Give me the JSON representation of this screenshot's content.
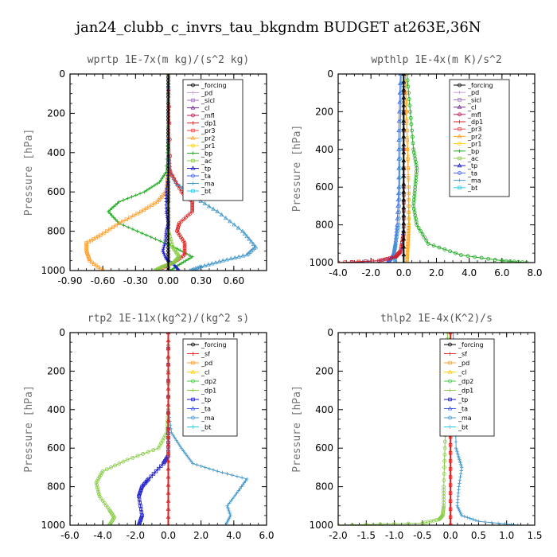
{
  "figure": {
    "title": "jan24_clubb_c_invrs_tau_bkgndm  BUDGET at263E,36N"
  },
  "colors": {
    "forcing": "#000000",
    "pd": "#c8a0d8",
    "sicl": "#a070c0",
    "cl": "#7a2a9a",
    "mfl": "#c01850",
    "dp1": "#dd2222",
    "pr3": "#ee4444",
    "pr2": "#ffa030",
    "pr1": "#ffd000",
    "bp": "#22aa22",
    "ac": "#88cc44",
    "tp": "#1a1acc",
    "ta": "#4466ee",
    "ma": "#4499cc",
    "bt": "#22ccee",
    "sf": "#ee2222",
    "dp2": "#44cc44"
  },
  "chart_data": [
    {
      "type": "line",
      "title": "wprtp  1E-7x(m kg)/(s^2 kg)",
      "ylabel": "Pressure [hPa]",
      "xlim": [
        -0.9,
        0.9
      ],
      "ylim": [
        1000,
        0
      ],
      "y_inverted": true,
      "xticks": [
        "-0.90",
        "-0.60",
        "-0.30",
        "0.00",
        "0.30",
        "0.60"
      ],
      "xtick_values": [
        -0.9,
        -0.6,
        -0.3,
        0,
        0.3,
        0.6
      ],
      "yticks": [
        "0",
        "200",
        "400",
        "600",
        "800",
        "1000"
      ],
      "legend": [
        "_forcing",
        "_pd",
        "_sicl",
        "_cl",
        "_mfl",
        "_dp1",
        "_pr3",
        "_pr2",
        "_pr1",
        "_bp",
        "_ac",
        "_tp",
        "_ta",
        "_ma",
        "_bt"
      ],
      "legend_colors": [
        "forcing",
        "pd",
        "sicl",
        "cl",
        "mfl",
        "dp1",
        "pr3",
        "pr2",
        "pr1",
        "bp",
        "ac",
        "tp",
        "ta",
        "ma",
        "bt"
      ],
      "series": [
        {
          "name": "_forcing",
          "color": "forcing",
          "x": [
            0,
            0,
            0,
            0,
            0,
            0,
            0,
            0,
            0,
            0,
            0
          ],
          "y": [
            0,
            100,
            200,
            300,
            400,
            500,
            600,
            700,
            800,
            900,
            1000
          ]
        },
        {
          "name": "_bp",
          "color": "bp",
          "x": [
            0,
            0,
            -0.02,
            -0.08,
            -0.22,
            -0.45,
            -0.55,
            -0.45,
            -0.2,
            0.05,
            0.22,
            0.1,
            0.02
          ],
          "y": [
            0,
            300,
            500,
            550,
            600,
            650,
            700,
            760,
            820,
            880,
            930,
            970,
            1000
          ]
        },
        {
          "name": "_pr2",
          "color": "pr2",
          "x": [
            0,
            0,
            -0.02,
            -0.1,
            -0.25,
            -0.45,
            -0.62,
            -0.75,
            -0.75,
            -0.72,
            -0.6
          ],
          "y": [
            0,
            500,
            600,
            650,
            700,
            760,
            820,
            860,
            900,
            950,
            1000
          ]
        },
        {
          "name": "_ma",
          "color": "ma",
          "x": [
            0,
            0,
            0.02,
            0.08,
            0.22,
            0.45,
            0.68,
            0.8,
            0.72,
            0.5,
            0.3,
            0.2
          ],
          "y": [
            0,
            400,
            500,
            560,
            620,
            700,
            800,
            880,
            920,
            950,
            980,
            1000
          ]
        },
        {
          "name": "_dp1",
          "color": "dp1",
          "x": [
            0,
            0.02,
            0.12,
            0.22,
            0.22,
            0.1,
            0.08,
            0.15,
            0.15,
            0.05,
            -0.1
          ],
          "y": [
            0,
            500,
            600,
            650,
            700,
            760,
            800,
            860,
            920,
            960,
            1000
          ]
        },
        {
          "name": "_tp",
          "color": "tp",
          "x": [
            0,
            0,
            -0.02,
            -0.02,
            0,
            -0.02,
            -0.03,
            -0.05,
            -0.02,
            0.05,
            0.1
          ],
          "y": [
            0,
            500,
            600,
            700,
            760,
            800,
            860,
            900,
            940,
            970,
            1000
          ]
        },
        {
          "name": "_ac",
          "color": "ac",
          "x": [
            0,
            0,
            0.04,
            0.1,
            0.05,
            -0.05,
            -0.12
          ],
          "y": [
            0,
            800,
            880,
            930,
            960,
            980,
            1000
          ]
        }
      ]
    },
    {
      "type": "line",
      "title": "wpthlp  1E-4x(m K)/s^2",
      "ylabel": "Pressure [hPa]",
      "xlim": [
        -4.0,
        8.0
      ],
      "ylim": [
        1000,
        0
      ],
      "y_inverted": true,
      "xticks": [
        "-4.0",
        "-2.0",
        "0.0",
        "2.0",
        "4.0",
        "6.0",
        "8.0"
      ],
      "xtick_values": [
        -4,
        -2,
        0,
        2,
        4,
        6,
        8
      ],
      "yticks": [
        "0",
        "200",
        "400",
        "600",
        "800",
        "1000"
      ],
      "legend": [
        "_forcing",
        "_pd",
        "_sicl",
        "_cl",
        "_mfl",
        "_dp1",
        "_pr3",
        "_pr2",
        "_pr1",
        "_bp",
        "_ac",
        "_tp",
        "_ta",
        "_ma",
        "_bt"
      ],
      "legend_colors": [
        "forcing",
        "pd",
        "sicl",
        "cl",
        "mfl",
        "dp1",
        "pr3",
        "pr2",
        "pr1",
        "bp",
        "ac",
        "tp",
        "ta",
        "ma",
        "bt"
      ],
      "series": [
        {
          "name": "_bp",
          "color": "bp",
          "x": [
            0.2,
            0.4,
            0.6,
            0.8,
            0.7,
            0.6,
            0.8,
            1.5,
            3.5,
            6.0,
            7.5
          ],
          "y": [
            0,
            200,
            400,
            500,
            600,
            700,
            800,
            900,
            960,
            990,
            1000
          ]
        },
        {
          "name": "_pr1",
          "color": "pr1",
          "x": [
            0.1,
            0.15,
            0.25,
            0.3,
            0.35,
            0.3,
            0.25,
            0.2
          ],
          "y": [
            0,
            200,
            400,
            600,
            800,
            900,
            960,
            1000
          ]
        },
        {
          "name": "_pr2",
          "color": "pr2",
          "x": [
            0.1,
            0.2,
            0.3,
            0.3,
            0.25,
            0.2
          ],
          "y": [
            0,
            300,
            600,
            800,
            900,
            1000
          ]
        },
        {
          "name": "_ta",
          "color": "ta",
          "x": [
            -0.2,
            -0.3,
            -0.3,
            -0.4,
            -0.5,
            -0.6,
            -0.8,
            -1.0
          ],
          "y": [
            0,
            300,
            600,
            800,
            900,
            950,
            980,
            1000
          ]
        },
        {
          "name": "_ma",
          "color": "ma",
          "x": [
            -0.15,
            -0.2,
            -0.25,
            -0.3,
            -0.5,
            -0.6,
            -0.5
          ],
          "y": [
            0,
            300,
            600,
            800,
            900,
            950,
            1000
          ]
        },
        {
          "name": "_tp",
          "color": "tp",
          "x": [
            0,
            0,
            0,
            -0.1,
            -0.2,
            -0.5,
            -1.5,
            -3.5
          ],
          "y": [
            0,
            400,
            800,
            900,
            950,
            970,
            990,
            1000
          ]
        },
        {
          "name": "_dp1",
          "color": "dp1",
          "x": [
            0,
            0,
            0,
            -0.2,
            -0.5,
            -1.5,
            -4.0
          ],
          "y": [
            0,
            600,
            850,
            940,
            970,
            990,
            1000
          ]
        },
        {
          "name": "_forcing",
          "color": "forcing",
          "x": [
            0,
            0,
            0,
            0,
            0
          ],
          "y": [
            0,
            250,
            500,
            750,
            1000
          ]
        }
      ]
    },
    {
      "type": "line",
      "title": "rtp2  1E-11x(kg^2)/(kg^2 s)",
      "ylabel": "Pressure [hPa]",
      "xlim": [
        -6.0,
        6.0
      ],
      "ylim": [
        1000,
        0
      ],
      "y_inverted": true,
      "xticks": [
        "-6.0",
        "-4.0",
        "-2.0",
        "0.0",
        "2.0",
        "4.0",
        "6.0"
      ],
      "xtick_values": [
        -6,
        -4,
        -2,
        0,
        2,
        4,
        6
      ],
      "yticks": [
        "0",
        "200",
        "400",
        "600",
        "800",
        "1000"
      ],
      "legend": [
        "_forcing",
        "_sf",
        "_pd",
        "_cl",
        "_dp2",
        "_dp1",
        "_tp",
        "_ta",
        "_ma",
        "_bt"
      ],
      "legend_colors": [
        "forcing",
        "sf",
        "pr2",
        "pr1",
        "dp2",
        "ac",
        "tp",
        "ta",
        "ma",
        "bt"
      ],
      "series": [
        {
          "name": "_dp1",
          "color": "ac",
          "x": [
            0,
            0,
            -0.1,
            -0.6,
            -2.5,
            -4.0,
            -4.4,
            -4.2,
            -3.6,
            -3.3,
            -3.6
          ],
          "y": [
            0,
            400,
            520,
            600,
            660,
            720,
            780,
            850,
            920,
            960,
            1000
          ]
        },
        {
          "name": "_ma",
          "color": "ma",
          "x": [
            0,
            0,
            0.2,
            0.8,
            1.5,
            3.0,
            4.8,
            4.3,
            3.6,
            3.8,
            3.5
          ],
          "y": [
            0,
            400,
            520,
            600,
            680,
            720,
            760,
            820,
            900,
            950,
            1000
          ]
        },
        {
          "name": "_tp",
          "color": "tp",
          "x": [
            0,
            0,
            0,
            -0.3,
            -1.2,
            -1.6,
            -1.8,
            -1.6,
            -1.8
          ],
          "y": [
            0,
            500,
            640,
            680,
            760,
            800,
            850,
            950,
            1000
          ]
        },
        {
          "name": "_forcing",
          "color": "sf",
          "x": [
            0,
            0,
            0,
            0,
            0
          ],
          "y": [
            0,
            250,
            500,
            750,
            1000
          ]
        }
      ]
    },
    {
      "type": "line",
      "title": "thlp2  1E-4x(K^2)/s",
      "ylabel": "Pressure [hPa]",
      "xlim": [
        -2.0,
        1.5
      ],
      "ylim": [
        1000,
        0
      ],
      "y_inverted": true,
      "xticks": [
        "-2.0",
        "-1.5",
        "-1.0",
        "-0.5",
        "0.0",
        "0.5",
        "1.0",
        "1.5"
      ],
      "xtick_values": [
        -2,
        -1.5,
        -1,
        -0.5,
        0,
        0.5,
        1,
        1.5
      ],
      "yticks": [
        "0",
        "200",
        "400",
        "600",
        "800",
        "1000"
      ],
      "legend": [
        "_forcing",
        "_sf",
        "_pd",
        "_cl",
        "_dp2",
        "_dp1",
        "_tp",
        "_ta",
        "_ma",
        "_bt"
      ],
      "legend_colors": [
        "forcing",
        "sf",
        "pr2",
        "pr1",
        "dp2",
        "ac",
        "tp",
        "ta",
        "ma",
        "bt"
      ],
      "series": [
        {
          "name": "_dp1",
          "color": "ac",
          "x": [
            -0.05,
            -0.06,
            -0.08,
            -0.1,
            -0.12,
            -0.12,
            -0.14,
            -0.2,
            -0.5,
            -2.0
          ],
          "y": [
            0,
            200,
            400,
            600,
            800,
            900,
            950,
            970,
            990,
            1000
          ]
        },
        {
          "name": "_ma",
          "color": "ma",
          "x": [
            0.05,
            0.06,
            0.08,
            0.1,
            0.15,
            0.2,
            0.15,
            0.12,
            0.2,
            0.5,
            1.2
          ],
          "y": [
            0,
            200,
            400,
            600,
            650,
            700,
            800,
            900,
            950,
            980,
            1000
          ]
        },
        {
          "name": "_forcing",
          "color": "sf",
          "x": [
            0,
            0,
            0,
            0,
            0
          ],
          "y": [
            0,
            250,
            500,
            750,
            1000
          ]
        }
      ]
    }
  ]
}
